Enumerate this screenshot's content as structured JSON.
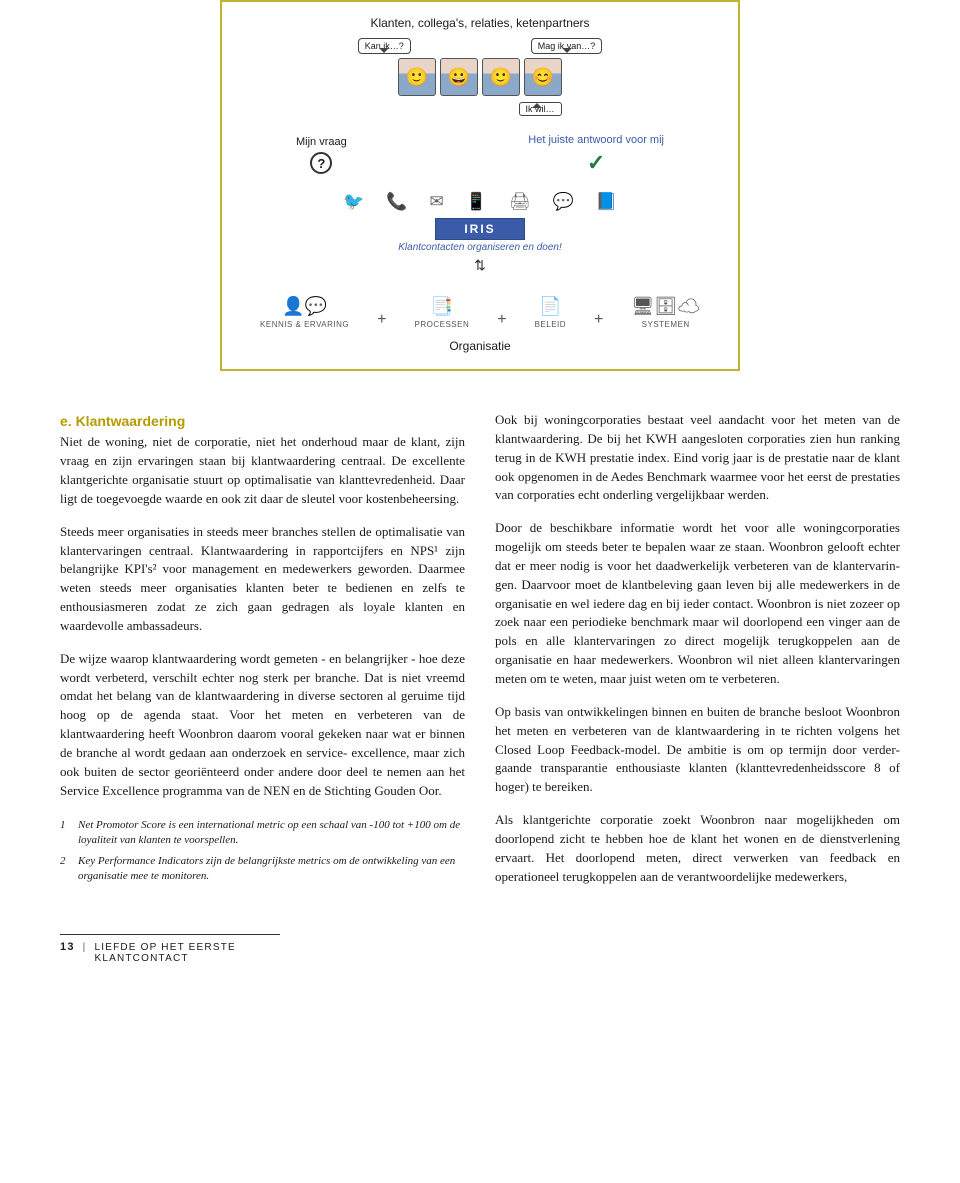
{
  "diagram": {
    "border_color": "#c2b22e",
    "title": "Klanten, collega's, relaties, ketenpartners",
    "bubble_left": "Kan ik…?",
    "bubble_right": "Mag ik van…?",
    "bubble_under": "Ik wil…",
    "col_left_label": "Mijn vraag",
    "question_mark": "?",
    "col_right_label": "Het juiste antwoord voor mij",
    "right_label_color": "#3a5ca8",
    "checkmark": "✓",
    "channels": [
      "🐦",
      "📞",
      "✉",
      "📱",
      "🖨",
      "💬",
      "📘"
    ],
    "iris_label": "IRIS",
    "iris_sub": "Klantcontacten organiseren en doen!",
    "iris_bg": "#3a5ca8",
    "bottom": [
      {
        "icon": "👤💬",
        "label": "KENNIS & ERVARING"
      },
      {
        "icon": "📑",
        "label": "PROCESSEN"
      },
      {
        "icon": "📄",
        "label": "BELEID"
      },
      {
        "icon": "🖥🗄☁",
        "label": "SYSTEMEN"
      }
    ],
    "org_label": "Organisatie"
  },
  "heading": "e. Klantwaardering",
  "left_paras": [
    "Niet de woning, niet de corporatie, niet het onderhoud maar de klant, zijn vraag en zijn ervaringen staan bij klant­waardering centraal. De excellente klantgerichte organi­satie stuurt op optimalisatie van klanttevredenheid. Daar ligt de toegevoegde waarde en ook zit daar de sleutel voor kostenbeheersing.",
    "Steeds meer organisaties in steeds meer branches stellen de optimalisatie van klantervaringen centraal. Klantwaar­dering in rapportcijfers en NPS¹ zijn belangrijke KPI's² voor management en medewerkers geworden. Daarmee weten steeds meer organisaties klanten beter te bedienen en zelfs te enthousiasmeren zodat ze zich gaan gedragen als loyale klanten en waardevolle ambassadeurs.",
    "De wijze waarop klantwaardering wordt gemeten - en belangrijker - hoe deze wordt verbeterd, verschilt echter nog sterk per branche. Dat is niet vreemd omdat het belang van de klantwaardering in diverse sectoren al geruime tijd hoog op de agenda staat. Voor het meten en verbeteren van de klantwaardering heeft Woonbron daarom vooral gekeken naar wat er binnen de branche al wordt gedaan aan onderzoek en service- excellence, maar zich ook buiten de sector georiënteerd onder andere door deel te nemen aan het Service Excellence programma van de NEN en de Stichting Gouden Oor."
  ],
  "right_paras": [
    "Ook bij woningcorporaties bestaat veel aandacht voor het meten van de klantwaardering. De bij het KWH aan­gesloten corporaties zien hun ranking terug in de KWH prestatie index. Eind vorig jaar is de prestatie naar de klant ook opgenomen in de Aedes Benchmark waarmee voor het eerst de prestaties van corporaties echt onderling vergelijk­baar werden.",
    "Door de beschikbare informatie wordt het voor alle woningcorporaties mogelijk om steeds beter te bepalen waar ze staan. Woonbron gelooft echter dat er meer nodig is voor het daadwerkelijk verbeteren van de klantervarin­gen. Daarvoor moet de klantbeleving gaan leven bij alle medewerkers in de organisatie en wel iedere dag en bij ieder contact. Woonbron is niet zozeer op zoek naar een periodieke benchmark maar wil doorlopend een vinger aan de pols en alle klantervaringen zo direct mogelijk terug­koppelen aan de organisatie en haar medewerkers. Woon­bron wil niet alleen klantervaringen meten om te weten, maar juist weten om te verbeteren.",
    "Op basis van ontwikkelingen binnen en buiten de bran­che besloot Woonbron het meten en verbeteren van de klantwaardering in te richten volgens het Closed Loop Feedback-model. De ambitie is om op termijn door verder­gaande transparantie enthousiaste klanten (klanttevre­denheidsscore 8 of hoger) te bereiken.",
    "Als klantgerichte corporatie zoekt Woonbron naar moge­lijkheden om doorlopend zicht te hebben hoe de klant het wonen en de dienstverlening ervaart. Het doorlopend meten, direct verwerken van feedback en operationeel terugkoppelen aan de verantwoordelijke medewerkers,"
  ],
  "footnotes": [
    {
      "n": "1",
      "text": "Net Promotor Score is een international metric op een schaal van -100 tot +100 om de loyaliteit van klanten te voorspellen."
    },
    {
      "n": "2",
      "text": "Key Performance Indicators zijn de belangrijkste metrics om de ont­wikkeling van een organisatie mee te monitoren."
    }
  ],
  "footer": {
    "page": "13",
    "title": "LIEFDE OP HET EERSTE KLANTCONTACT"
  }
}
